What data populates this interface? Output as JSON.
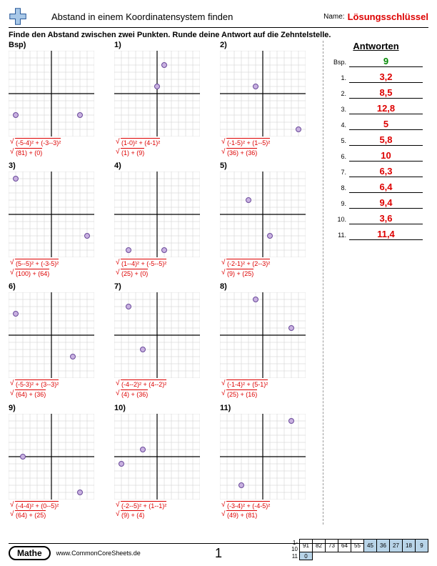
{
  "header": {
    "title": "Abstand in einem Koordinatensystem finden",
    "name_label": "Name:",
    "key": "Lösungsschlüssel"
  },
  "instruction": "Finde den Abstand zwischen zwei Punkten. Runde deine Antwort auf die Zehntelstelle.",
  "answers_header": "Antworten",
  "answers": [
    {
      "n": "Bsp.",
      "v": "9",
      "first": true
    },
    {
      "n": "1.",
      "v": "3,2"
    },
    {
      "n": "2.",
      "v": "8,5"
    },
    {
      "n": "3.",
      "v": "12,8"
    },
    {
      "n": "4.",
      "v": "5"
    },
    {
      "n": "5.",
      "v": "5,8"
    },
    {
      "n": "6.",
      "v": "10"
    },
    {
      "n": "7.",
      "v": "6,3"
    },
    {
      "n": "8.",
      "v": "6,4"
    },
    {
      "n": "9.",
      "v": "9,4"
    },
    {
      "n": "10.",
      "v": "3,6"
    },
    {
      "n": "11.",
      "v": "11,4"
    }
  ],
  "problems": [
    {
      "label": "Bsp)",
      "p1": [
        -5,
        -3
      ],
      "p2": [
        4,
        -3
      ],
      "f1": "(-5-4)² + (-3--3)²",
      "f2": "(81) + (0)"
    },
    {
      "label": "1)",
      "p1": [
        1,
        4
      ],
      "p2": [
        0,
        1
      ],
      "f1": "(1-0)² + (4-1)²",
      "f2": "(1) + (9)"
    },
    {
      "label": "2)",
      "p1": [
        -1,
        1
      ],
      "p2": [
        5,
        -5
      ],
      "f1": "(-1-5)² + (1--5)²",
      "f2": "(36) + (36)"
    },
    {
      "label": "3)",
      "p1": [
        5,
        -3
      ],
      "p2": [
        -5,
        5
      ],
      "f1": "(5--5)² + (-3-5)²",
      "f2": "(100) + (64)"
    },
    {
      "label": "4)",
      "p1": [
        1,
        -5
      ],
      "p2": [
        -4,
        -5
      ],
      "f1": "(1--4)² + (-5--5)²",
      "f2": "(25) + (0)"
    },
    {
      "label": "5)",
      "p1": [
        -2,
        2
      ],
      "p2": [
        1,
        -3
      ],
      "f1": "(-2-1)² + (2--3)²",
      "f2": "(9) + (25)"
    },
    {
      "label": "6)",
      "p1": [
        -5,
        3
      ],
      "p2": [
        3,
        -3
      ],
      "f1": "(-5-3)² + (3--3)²",
      "f2": "(64) + (36)"
    },
    {
      "label": "7)",
      "p1": [
        -4,
        4
      ],
      "p2": [
        -2,
        -2
      ],
      "f1": "(-4--2)² + (4--2)²",
      "f2": "(4) + (36)"
    },
    {
      "label": "8)",
      "p1": [
        -1,
        5
      ],
      "p2": [
        4,
        1
      ],
      "f1": "(-1-4)² + (5-1)²",
      "f2": "(25) + (16)"
    },
    {
      "label": "9)",
      "p1": [
        -4,
        0
      ],
      "p2": [
        4,
        -5
      ],
      "f1": "(-4-4)² + (0--5)²",
      "f2": "(64) + (25)"
    },
    {
      "label": "10)",
      "p1": [
        -2,
        1
      ],
      "p2": [
        -5,
        -1
      ],
      "f1": "(-2--5)² + (1--1)²",
      "f2": "(9) + (4)"
    },
    {
      "label": "11)",
      "p1": [
        -3,
        -4
      ],
      "p2": [
        4,
        5
      ],
      "f1": "(-3-4)² + (-4-5)²",
      "f2": "(49) + (81)"
    }
  ],
  "graph": {
    "range": 6,
    "cell": 10,
    "grid_color": "#cccccc",
    "axis_color": "#000000",
    "point_fill": "#c8b0e0",
    "point_stroke": "#6a4a9a",
    "point_r": 3.5,
    "bg": "#ffffff"
  },
  "footer": {
    "subject": "Mathe",
    "url": "www.CommonCoreSheets.de",
    "page": "1",
    "score_rows": [
      {
        "lab": "1-10",
        "cells": [
          {
            "v": "91"
          },
          {
            "v": "82"
          },
          {
            "v": "73"
          },
          {
            "v": "64"
          },
          {
            "v": "55"
          },
          {
            "v": "45",
            "blue": true
          },
          {
            "v": "36",
            "blue": true
          },
          {
            "v": "27",
            "blue": true
          },
          {
            "v": "18",
            "blue": true
          },
          {
            "v": "9",
            "blue": true
          }
        ]
      },
      {
        "lab": "11",
        "cells": [
          {
            "v": "0",
            "blue": true
          }
        ]
      }
    ]
  },
  "colors": {
    "red": "#d00000",
    "green": "#008800"
  }
}
